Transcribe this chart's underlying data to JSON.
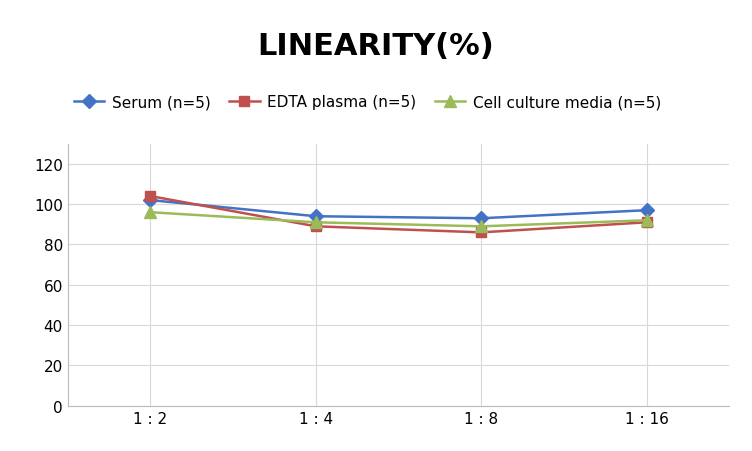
{
  "title": "LINEARITY(%)",
  "title_fontsize": 22,
  "title_fontweight": "bold",
  "x_labels": [
    "1 : 2",
    "1 : 4",
    "1 : 8",
    "1 : 16"
  ],
  "x_positions": [
    0,
    1,
    2,
    3
  ],
  "series": [
    {
      "label": "Serum (n=5)",
      "color": "#4472C4",
      "marker": "D",
      "markersize": 7,
      "values": [
        102,
        94,
        93,
        97
      ]
    },
    {
      "label": "EDTA plasma (n=5)",
      "color": "#C0504D",
      "marker": "s",
      "markersize": 7,
      "values": [
        104,
        89,
        86,
        91
      ]
    },
    {
      "label": "Cell culture media (n=5)",
      "color": "#9BBB59",
      "marker": "^",
      "markersize": 8,
      "values": [
        96,
        91,
        89,
        92
      ]
    }
  ],
  "ylim": [
    0,
    130
  ],
  "yticks": [
    0,
    20,
    40,
    60,
    80,
    100,
    120
  ],
  "grid_color": "#D8D8D8",
  "background_color": "#FFFFFF",
  "legend_fontsize": 11,
  "tick_fontsize": 11,
  "linewidth": 1.8
}
